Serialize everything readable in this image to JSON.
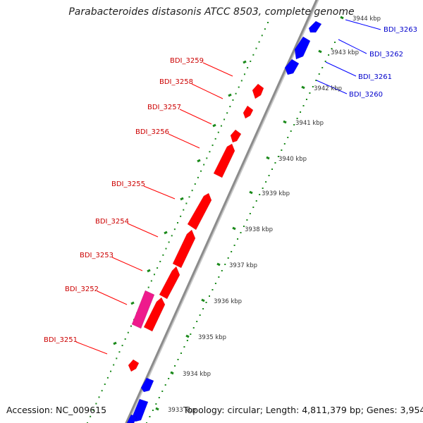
{
  "title": "Parabacteroides distasonis ATCC 8503, complete genome",
  "footer": {
    "accession": "Accession: NC_009615",
    "summary": "Topology: circular; Length: 4,811,379 bp; Genes: 3,954"
  },
  "colors": {
    "reverse_gene": "#ff0000",
    "forward_gene": "#0000ff",
    "pseudo_gene": "#ee1a8c",
    "reverse_label": "#cc0000",
    "forward_label": "#0000cc",
    "tick": "#1b8a1b",
    "backbone": "#8c8c8c"
  },
  "kbp_ticks": [
    {
      "label": "3933 kbp",
      "kbp": 3933
    },
    {
      "label": "3934 kbp",
      "kbp": 3934
    },
    {
      "label": "3935 kbp",
      "kbp": 3935
    },
    {
      "label": "3936 kbp",
      "kbp": 3936
    },
    {
      "label": "3937 kbp",
      "kbp": 3937
    },
    {
      "label": "3938 kbp",
      "kbp": 3938
    },
    {
      "label": "3939 kbp",
      "kbp": 3939
    },
    {
      "label": "3940 kbp",
      "kbp": 3940
    },
    {
      "label": "3941 kbp",
      "kbp": 3941
    },
    {
      "label": "3942 kbp",
      "kbp": 3942
    },
    {
      "label": "3943 kbp",
      "kbp": 3943
    },
    {
      "label": "3944 kbp",
      "kbp": 3944
    }
  ],
  "reverse_labels": [
    "BDI_3259",
    "BDI_3258",
    "BDI_3257",
    "BDI_3256",
    "BDI_3255",
    "BDI_3254",
    "BDI_3253",
    "BDI_3252",
    "BDI_3251"
  ],
  "forward_labels": [
    "BDI_3263",
    "BDI_3262",
    "BDI_3261",
    "BDI_3260"
  ]
}
